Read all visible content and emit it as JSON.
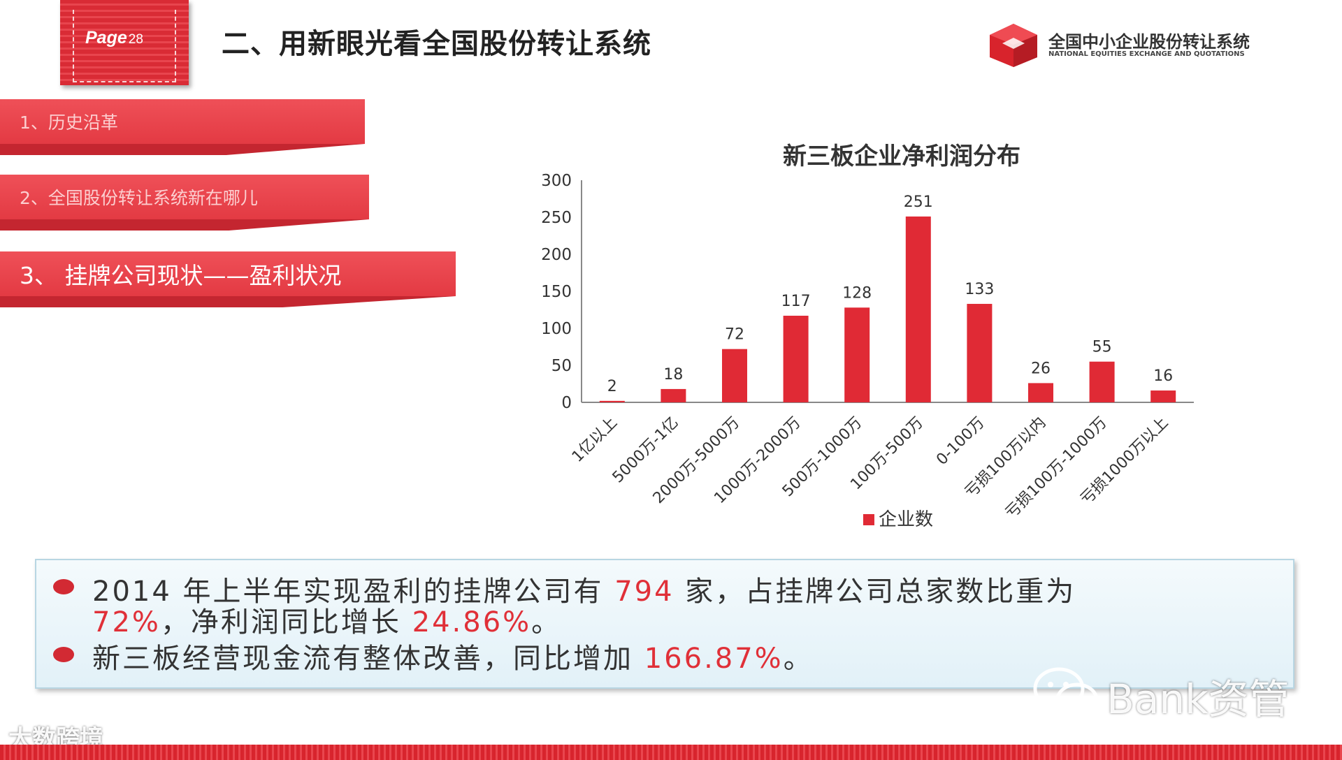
{
  "header": {
    "page_label": "Page",
    "page_number": "28",
    "title": "二、用新眼光看全国股份转让系统",
    "logo_cn": "全国中小企业股份转让系统",
    "logo_en": "NATIONAL EQUITIES EXCHANGE AND QUOTATIONS"
  },
  "sidebar": {
    "items": [
      {
        "label": "1、历史沿革"
      },
      {
        "label": "2、全国股份转让系统新在哪儿"
      },
      {
        "label": "3、 挂牌公司现状——盈利状况"
      }
    ]
  },
  "chart_data": {
    "type": "bar",
    "title": "新三板企业净利润分布",
    "categories": [
      "1亿以上",
      "5000万-1亿",
      "2000万-5000万",
      "1000万-2000万",
      "500万-1000万",
      "100万-500万",
      "0-100万",
      "亏损100万以内",
      "亏损100万-1000万",
      "亏损1000万以上"
    ],
    "series": [
      {
        "name": "企业数",
        "values": [
          2,
          18,
          72,
          117,
          128,
          251,
          133,
          26,
          55,
          16
        ]
      }
    ],
    "ylim": [
      0,
      300
    ],
    "yticks": [
      0,
      50,
      100,
      150,
      200,
      250,
      300
    ],
    "legend": "bottom",
    "grid": false,
    "bar_color": "#e02a35"
  },
  "summary": {
    "line1_a": "2014 年上半年实现盈利的挂牌公司有 ",
    "line1_b": "794",
    "line1_c": " 家，占挂牌公司总家数比重为",
    "line2_a": "72%",
    "line2_b": "，净利润同比增长 ",
    "line2_c": "24.86%",
    "line2_d": "。",
    "line3_a": "新三板经营现金流有整体改善，同比增加 ",
    "line3_b": "166.87%",
    "line3_c": "。"
  },
  "watermarks": {
    "left": "大数跨境",
    "right": "Bank资管"
  }
}
